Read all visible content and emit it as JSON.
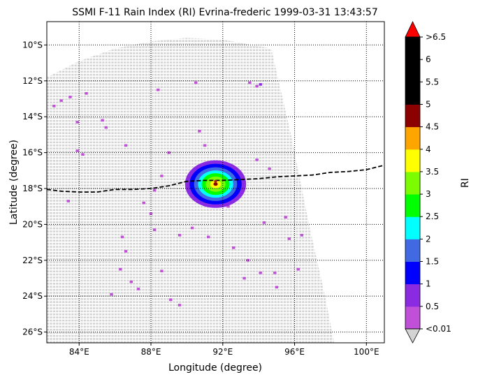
{
  "chart_data": {
    "type": "heatmap",
    "title": "SSMI F-11 Rain Index (RI) Evrina-frederic 1999-03-31 13:43:57",
    "xlabel": "Longitude (degree)",
    "ylabel": "Latitude (degree)",
    "xlim": [
      82.2,
      101.0
    ],
    "ylim": [
      -26.6,
      -8.7
    ],
    "xticks": [
      84,
      88,
      92,
      96,
      100
    ],
    "xtick_labels": [
      "84°E",
      "88°E",
      "92°E",
      "96°E",
      "100°E"
    ],
    "yticks": [
      -10,
      -12,
      -14,
      -16,
      -18,
      -20,
      -22,
      -24,
      -26
    ],
    "ytick_labels": [
      "10°S",
      "12°S",
      "14°S",
      "16°S",
      "18°S",
      "20°S",
      "22°S",
      "24°S",
      "26°S"
    ],
    "grid": true,
    "colorbar": {
      "label": "RI",
      "boundaries": [
        0.01,
        0.5,
        1,
        1.5,
        2,
        2.5,
        3,
        3.5,
        4,
        4.5,
        5,
        5.5,
        6,
        6.5
      ],
      "colors": [
        "#c050d8",
        "#8a2be2",
        "#0000ff",
        "#4169e1",
        "#00ffff",
        "#00ff00",
        "#7cfc00",
        "#ffff00",
        "#ffa500",
        "#8b0000",
        "#000000",
        "#000000",
        "#000000"
      ],
      "under_color": "#d3d3d3",
      "over_color": "#ff0000",
      "tick_labels": [
        "<0.01",
        "0.5",
        "1",
        "1.5",
        "2",
        "2.5",
        "3",
        "3.5",
        "4",
        "4.5",
        "5",
        "5.5",
        "6",
        ">6.5"
      ]
    },
    "swath": {
      "no_rain_color": "#d3d3d3",
      "polygon": [
        [
          82.2,
          -11.8
        ],
        [
          84,
          -10.9
        ],
        [
          86,
          -10.2
        ],
        [
          88,
          -9.8
        ],
        [
          90,
          -9.6
        ],
        [
          92,
          -9.7
        ],
        [
          94.7,
          -10.2
        ],
        [
          95.8,
          -15.0
        ],
        [
          96.8,
          -20.0
        ],
        [
          97.7,
          -24.0
        ],
        [
          98.2,
          -26.6
        ],
        [
          82.2,
          -26.6
        ]
      ]
    },
    "track": {
      "style": "dashed",
      "color": "#000000",
      "points": [
        [
          82.2,
          -18.05
        ],
        [
          83,
          -18.15
        ],
        [
          84,
          -18.2
        ],
        [
          85,
          -18.2
        ],
        [
          86,
          -18.05
        ],
        [
          87,
          -18.05
        ],
        [
          88,
          -18.0
        ],
        [
          89,
          -17.85
        ],
        [
          90,
          -17.6
        ],
        [
          91,
          -17.55
        ],
        [
          92,
          -17.55
        ],
        [
          93,
          -17.5
        ],
        [
          94,
          -17.45
        ],
        [
          95,
          -17.35
        ],
        [
          96,
          -17.3
        ],
        [
          97,
          -17.25
        ],
        [
          98,
          -17.1
        ],
        [
          99,
          -17.05
        ],
        [
          100,
          -16.95
        ],
        [
          101,
          -16.7
        ]
      ]
    },
    "storm_center": [
      91.6,
      -17.6
    ],
    "rain_cells": [
      {
        "x": 82.6,
        "y": -13.4,
        "ri": 0.3
      },
      {
        "x": 83.0,
        "y": -13.1,
        "ri": 0.3
      },
      {
        "x": 83.5,
        "y": -12.9,
        "ri": 0.3
      },
      {
        "x": 84.4,
        "y": -12.7,
        "ri": 0.3
      },
      {
        "x": 83.9,
        "y": -14.3,
        "ri": 0.3
      },
      {
        "x": 85.3,
        "y": -14.2,
        "ri": 0.3
      },
      {
        "x": 85.5,
        "y": -14.6,
        "ri": 0.3
      },
      {
        "x": 83.9,
        "y": -15.9,
        "ri": 0.3
      },
      {
        "x": 84.2,
        "y": -16.1,
        "ri": 0.3
      },
      {
        "x": 86.6,
        "y": -15.6,
        "ri": 0.3
      },
      {
        "x": 88.4,
        "y": -12.5,
        "ri": 0.3
      },
      {
        "x": 89.0,
        "y": -16.0,
        "ri": 0.3
      },
      {
        "x": 88.6,
        "y": -17.3,
        "ri": 0.3
      },
      {
        "x": 88.2,
        "y": -18.1,
        "ri": 0.3
      },
      {
        "x": 87.6,
        "y": -18.8,
        "ri": 0.3
      },
      {
        "x": 88.0,
        "y": -19.4,
        "ri": 0.3
      },
      {
        "x": 90.7,
        "y": -14.8,
        "ri": 0.3
      },
      {
        "x": 91.0,
        "y": -15.6,
        "ri": 0.3
      },
      {
        "x": 90.5,
        "y": -12.1,
        "ri": 0.3
      },
      {
        "x": 93.5,
        "y": -12.1,
        "ri": 0.3
      },
      {
        "x": 93.9,
        "y": -12.3,
        "ri": 0.3
      },
      {
        "x": 94.1,
        "y": -12.2,
        "ri": 0.75
      },
      {
        "x": 93.9,
        "y": -16.4,
        "ri": 0.3
      },
      {
        "x": 94.6,
        "y": -16.9,
        "ri": 0.3
      },
      {
        "x": 83.4,
        "y": -18.7,
        "ri": 0.3
      },
      {
        "x": 86.4,
        "y": -20.7,
        "ri": 0.3
      },
      {
        "x": 86.6,
        "y": -21.5,
        "ri": 0.3
      },
      {
        "x": 86.3,
        "y": -22.5,
        "ri": 0.3
      },
      {
        "x": 86.9,
        "y": -23.2,
        "ri": 0.3
      },
      {
        "x": 85.8,
        "y": -23.9,
        "ri": 0.3
      },
      {
        "x": 87.3,
        "y": -23.6,
        "ri": 0.3
      },
      {
        "x": 88.6,
        "y": -22.6,
        "ri": 0.3
      },
      {
        "x": 89.1,
        "y": -24.2,
        "ri": 0.3
      },
      {
        "x": 89.6,
        "y": -24.5,
        "ri": 0.3
      },
      {
        "x": 88.2,
        "y": -20.3,
        "ri": 0.3
      },
      {
        "x": 89.6,
        "y": -20.6,
        "ri": 0.3
      },
      {
        "x": 90.3,
        "y": -20.2,
        "ri": 0.3
      },
      {
        "x": 91.2,
        "y": -20.7,
        "ri": 0.3
      },
      {
        "x": 92.6,
        "y": -21.3,
        "ri": 0.3
      },
      {
        "x": 93.4,
        "y": -22.0,
        "ri": 0.3
      },
      {
        "x": 93.2,
        "y": -23.0,
        "ri": 0.3
      },
      {
        "x": 94.1,
        "y": -22.7,
        "ri": 0.3
      },
      {
        "x": 94.9,
        "y": -22.7,
        "ri": 0.3
      },
      {
        "x": 95.7,
        "y": -20.8,
        "ri": 0.3
      },
      {
        "x": 96.4,
        "y": -20.6,
        "ri": 0.3
      },
      {
        "x": 96.2,
        "y": -22.5,
        "ri": 0.3
      },
      {
        "x": 95.5,
        "y": -19.6,
        "ri": 0.3
      },
      {
        "x": 94.3,
        "y": -19.9,
        "ri": 0.3
      },
      {
        "x": 95.0,
        "y": -23.5,
        "ri": 0.3
      },
      {
        "x": 92.3,
        "y": -19.0,
        "ri": 0.3
      }
    ],
    "storm_core": [
      {
        "r": 1.7,
        "ri": 0.75
      },
      {
        "r": 1.45,
        "ri": 1.25
      },
      {
        "r": 1.2,
        "ri": 1.75
      },
      {
        "r": 0.98,
        "ri": 2.25
      },
      {
        "r": 0.78,
        "ri": 2.75
      },
      {
        "r": 0.55,
        "ri": 3.25
      },
      {
        "r": 0.3,
        "ri": 3.75
      },
      {
        "r": 0.12,
        "ri": 4.75
      }
    ]
  }
}
